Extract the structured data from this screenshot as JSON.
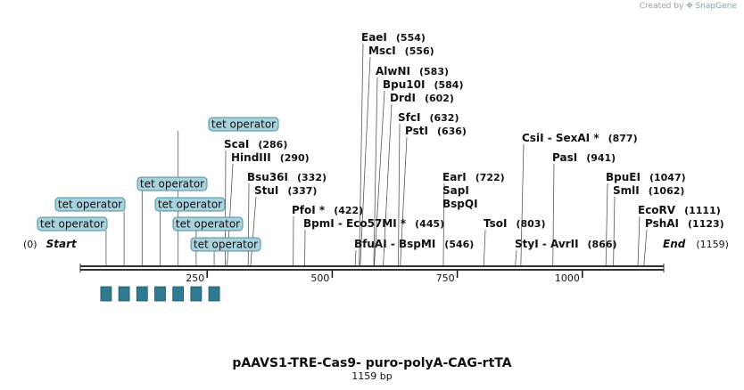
{
  "credit": {
    "prefix": "Created by",
    "brand": "SnapGene"
  },
  "title": "pAAVS1-TRE-Cas9- puro-polyA-CAG-rtTA",
  "length_label": "1159 bp",
  "total_bp": 1159,
  "colors": {
    "feature_fill": "#a8d2de",
    "feature_stroke": "#4a8fa3",
    "box_fill": "#2e7b91",
    "line": "#555555"
  },
  "ticks": [
    {
      "bp": 250,
      "label": "250"
    },
    {
      "bp": 500,
      "label": "500"
    },
    {
      "bp": 750,
      "label": "750"
    },
    {
      "bp": 1000,
      "label": "1000"
    }
  ],
  "ends": [
    {
      "name": "Start",
      "pos": "(0)",
      "bp": 0
    },
    {
      "name": "End",
      "pos": "(1159)",
      "bp": 1159
    }
  ],
  "sites": [
    {
      "name": "EaeI",
      "pos": "(554)",
      "bp": 554
    },
    {
      "name": "MscI",
      "pos": "(556)",
      "bp": 556
    },
    {
      "name": "AlwNI",
      "pos": "(583)",
      "bp": 583
    },
    {
      "name": "Bpu10I",
      "pos": "(584)",
      "bp": 584
    },
    {
      "name": "DrdI",
      "pos": "(602)",
      "bp": 602
    },
    {
      "name": "SfcI",
      "pos": "(632)",
      "bp": 632
    },
    {
      "name": "PstI",
      "pos": "(636)",
      "bp": 636
    },
    {
      "name": "CsiI  -  SexAI *",
      "pos": "(877)",
      "bp": 877
    },
    {
      "name": "ScaI",
      "pos": "(286)",
      "bp": 286
    },
    {
      "name": "HindIII",
      "pos": "(290)",
      "bp": 290
    },
    {
      "name": "PasI",
      "pos": "(941)",
      "bp": 941
    },
    {
      "name": "Bsu36I",
      "pos": "(332)",
      "bp": 332
    },
    {
      "name": "StuI",
      "pos": "(337)",
      "bp": 337
    },
    {
      "name": "EarI",
      "pos": "(722)",
      "bp": 722
    },
    {
      "name": "SapI",
      "pos": "",
      "bp": 722
    },
    {
      "name": "BspQI",
      "pos": "",
      "bp": 722
    },
    {
      "name": "BpuEI",
      "pos": "(1047)",
      "bp": 1047
    },
    {
      "name": "SmlI",
      "pos": "(1062)",
      "bp": 1062
    },
    {
      "name": "PfoI *",
      "pos": "(422)",
      "bp": 422
    },
    {
      "name": "EcoRV",
      "pos": "(1111)",
      "bp": 1111
    },
    {
      "name": "BpmI  -  Eco57MI *",
      "pos": "(445)",
      "bp": 445
    },
    {
      "name": "TsoI",
      "pos": "(803)",
      "bp": 803
    },
    {
      "name": "PshAI",
      "pos": "(1123)",
      "bp": 1123
    },
    {
      "name": "BfuAI  -  BspMI",
      "pos": "(546)",
      "bp": 546
    },
    {
      "name": "StyI  -  AvrII",
      "pos": "(866)",
      "bp": 866
    }
  ],
  "features": [
    {
      "label": "tet operator",
      "bp": 48
    },
    {
      "label": "tet operator",
      "bp": 84
    },
    {
      "label": "tet operator",
      "bp": 120
    },
    {
      "label": "tet operator",
      "bp": 156
    },
    {
      "label": "tet operator",
      "bp": 192
    },
    {
      "label": "tet operator",
      "bp": 228
    },
    {
      "label": "tet operator",
      "bp": 264
    }
  ]
}
